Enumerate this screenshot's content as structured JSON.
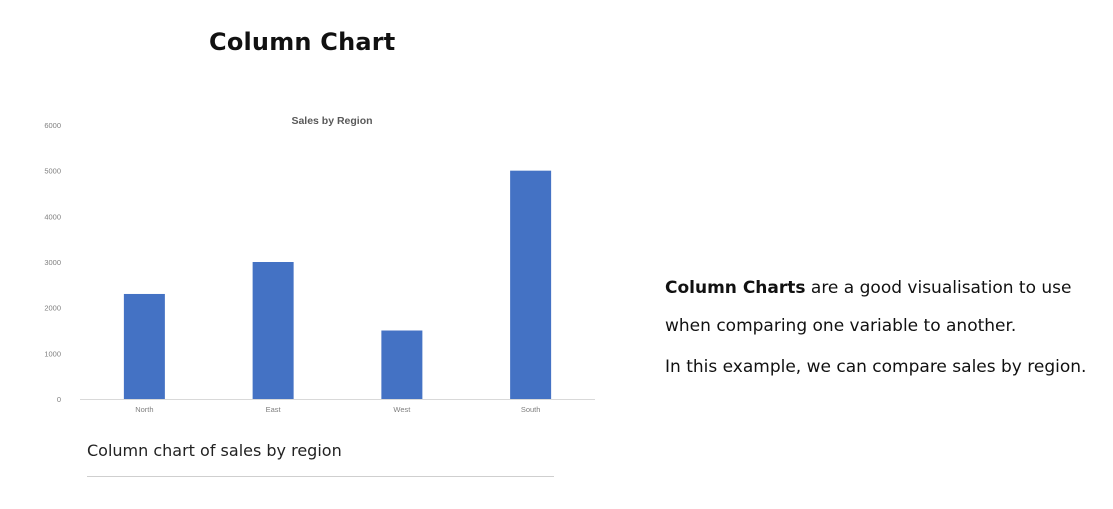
{
  "page": {
    "title": "Column Chart",
    "caption": "Column chart of sales by region"
  },
  "description": {
    "term": "Column Charts",
    "line1_rest": " are a good visualisation to use",
    "line2": "when comparing one variable to another.",
    "line3": "In this example, we can compare sales by region."
  },
  "chart_data": {
    "type": "bar",
    "title": "Sales by Region",
    "xlabel": "",
    "ylabel": "",
    "categories": [
      "North",
      "East",
      "West",
      "South"
    ],
    "values": [
      2300,
      3000,
      1500,
      5000
    ],
    "ylim": [
      0,
      6000
    ],
    "yticks": [
      0,
      1000,
      2000,
      3000,
      4000,
      5000,
      6000
    ],
    "grid": false,
    "legend": "none",
    "bar_color": "#4472C4",
    "axis_text_color": "#7f7f7f",
    "title_color": "#595959",
    "baseline_color": "#d9d9d9"
  }
}
